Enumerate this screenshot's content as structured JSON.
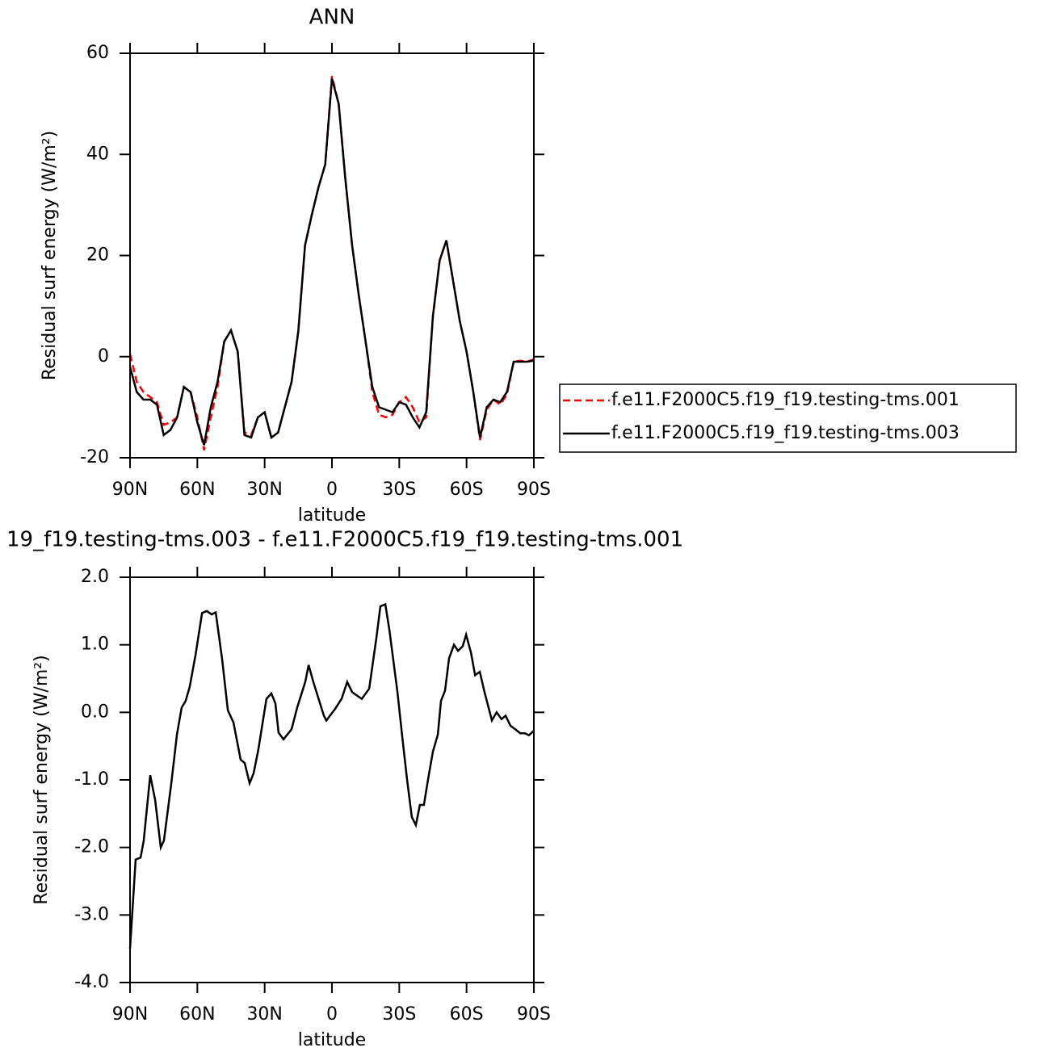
{
  "chart_data": [
    {
      "type": "line",
      "title": "ANN",
      "x_label": "latitude",
      "y_label": "Residual surf energy (W/m²)",
      "x": [
        90,
        87,
        84,
        81,
        78,
        75,
        72,
        69,
        66,
        63,
        60,
        57,
        54,
        51,
        48,
        45,
        42,
        39,
        36,
        33,
        30,
        27,
        24,
        21,
        18,
        15,
        12,
        9,
        6,
        3,
        0,
        -3,
        -6,
        -9,
        -12,
        -15,
        -18,
        -21,
        -24,
        -27,
        -30,
        -33,
        -36,
        -39,
        -42,
        -45,
        -48,
        -51,
        -54,
        -57,
        -60,
        -63,
        -66,
        -69,
        -72,
        -75,
        -78,
        -81,
        -84,
        -87,
        -90
      ],
      "series": [
        {
          "name": "f.e11.F2000C5.f19_f19.testing-tms.001",
          "color": "#ff0000",
          "line_style": "dashed",
          "values": [
            0.5,
            -5,
            -7,
            -8,
            -9,
            -13.5,
            -13,
            -12,
            -6,
            -7,
            -12,
            -18.5,
            -12,
            -6,
            3,
            5.2,
            1,
            -15,
            -15.5,
            -12,
            -11,
            -16,
            -15,
            -10,
            -5,
            5,
            22,
            28,
            33.5,
            38,
            55.5,
            50,
            35,
            22,
            12,
            3,
            -7,
            -11.5,
            -12,
            -11.5,
            -9,
            -8,
            -10,
            -13,
            -12,
            8,
            19,
            23,
            15,
            7,
            1,
            -7,
            -16.5,
            -10.5,
            -8.5,
            -9.5,
            -7.5,
            -1,
            -0.8,
            -1,
            -0.5
          ]
        },
        {
          "name": "f.e11.F2000C5.f19_f19.testing-tms.003",
          "color": "#000000",
          "line_style": "solid",
          "values": [
            -2,
            -7,
            -8.5,
            -8.5,
            -9.5,
            -15.5,
            -14.5,
            -12,
            -6,
            -7,
            -13,
            -17.5,
            -10,
            -5,
            3,
            5.2,
            1,
            -15.5,
            -16,
            -12,
            -11,
            -16,
            -15,
            -10,
            -5,
            5,
            22,
            28,
            33.5,
            38,
            55,
            50,
            35,
            22,
            12,
            3,
            -6,
            -10,
            -10.5,
            -11,
            -9,
            -9.5,
            -12,
            -14,
            -11,
            8,
            19,
            23,
            15,
            7,
            1,
            -7,
            -16,
            -10,
            -8.5,
            -9,
            -7,
            -1,
            -1,
            -1,
            -0.8
          ]
        }
      ],
      "xlim": [
        90,
        -90
      ],
      "xticks": [
        {
          "value": 90,
          "label": "90N"
        },
        {
          "value": 60,
          "label": "60N"
        },
        {
          "value": 30,
          "label": "30N"
        },
        0,
        {
          "value": -30,
          "label": "30S"
        },
        {
          "value": -60,
          "label": "60S"
        },
        {
          "value": -90,
          "label": "90S"
        }
      ],
      "ylim": [
        -20,
        60
      ],
      "yticks": [
        -20,
        0,
        20,
        40,
        60
      ],
      "legend": "right"
    },
    {
      "type": "line",
      "title": "19_f19.testing-tms.003 - f.e11.F2000C5.f19_f19.testing-tms.001",
      "x_label": "latitude",
      "y_label": "Residual surf energy (W/m²)",
      "x": [
        90,
        87.5,
        85.3,
        83.9,
        81,
        78.8,
        76.3,
        74.9,
        71.6,
        69.1,
        67,
        65.2,
        63.4,
        60.8,
        57.9,
        55.8,
        53.6,
        51.8,
        49,
        46.4,
        43.9,
        40.7,
        38.9,
        36.7,
        34.9,
        32.8,
        29.2,
        27,
        25.2,
        23.8,
        21.6,
        18,
        15.5,
        11.9,
        10.4,
        8.3,
        3.6,
        2.5,
        -1.4,
        -4.3,
        -6.8,
        -9,
        -13.3,
        -16.6,
        -19.8,
        -21.6,
        -23.8,
        -25.6,
        -29.2,
        -31.3,
        -33.5,
        -35.6,
        -37.4,
        -39.2,
        -41,
        -42.8,
        -45,
        -47.2,
        -48.6,
        -50.4,
        -52.2,
        -54.4,
        -56.2,
        -58.3,
        -59.8,
        -62,
        -63.8,
        -65.9,
        -68,
        -71.3,
        -73.4,
        -75.6,
        -77.4,
        -79.6,
        -81.7,
        -83.9,
        -86,
        -87.8,
        -90
      ],
      "series": [
        {
          "color": "#000000",
          "line_style": "solid",
          "values": [
            -3.5,
            -2.18,
            -2.15,
            -1.9,
            -0.93,
            -1.3,
            -2.0,
            -1.9,
            -1.05,
            -0.33,
            0.07,
            0.17,
            0.38,
            0.85,
            1.47,
            1.5,
            1.45,
            1.48,
            0.8,
            0.03,
            -0.15,
            -0.7,
            -0.75,
            -1.05,
            -0.9,
            -0.55,
            0.2,
            0.28,
            0.13,
            -0.3,
            -0.4,
            -0.25,
            0.07,
            0.45,
            0.7,
            0.45,
            -0.05,
            -0.12,
            0.05,
            0.2,
            0.45,
            0.3,
            0.2,
            0.35,
            1.1,
            1.57,
            1.6,
            1.22,
            0.3,
            -0.35,
            -1.0,
            -1.55,
            -1.67,
            -1.37,
            -1.37,
            -1.0,
            -0.58,
            -0.33,
            0.17,
            0.32,
            0.8,
            1.0,
            0.91,
            0.98,
            1.15,
            0.88,
            0.55,
            0.6,
            0.3,
            -0.12,
            0.0,
            -0.1,
            -0.05,
            -0.2,
            -0.25,
            -0.31,
            -0.31,
            -0.34,
            -0.27
          ]
        }
      ],
      "xlim": [
        90,
        -90
      ],
      "xticks": [
        {
          "value": 90,
          "label": "90N"
        },
        {
          "value": 60,
          "label": "60N"
        },
        {
          "value": 30,
          "label": "30N"
        },
        0,
        {
          "value": -30,
          "label": "30S"
        },
        {
          "value": -60,
          "label": "60S"
        },
        {
          "value": -90,
          "label": "90S"
        }
      ],
      "ylim": [
        -4,
        2
      ],
      "yticks": [
        {
          "value": -4,
          "label": "-4.0"
        },
        {
          "value": -3,
          "label": "-3.0"
        },
        {
          "value": -2,
          "label": "-2.0"
        },
        {
          "value": -1,
          "label": "-1.0"
        },
        {
          "value": 0,
          "label": "0.0"
        },
        {
          "value": 1,
          "label": "1.0"
        },
        {
          "value": 2,
          "label": "2.0"
        }
      ]
    }
  ]
}
